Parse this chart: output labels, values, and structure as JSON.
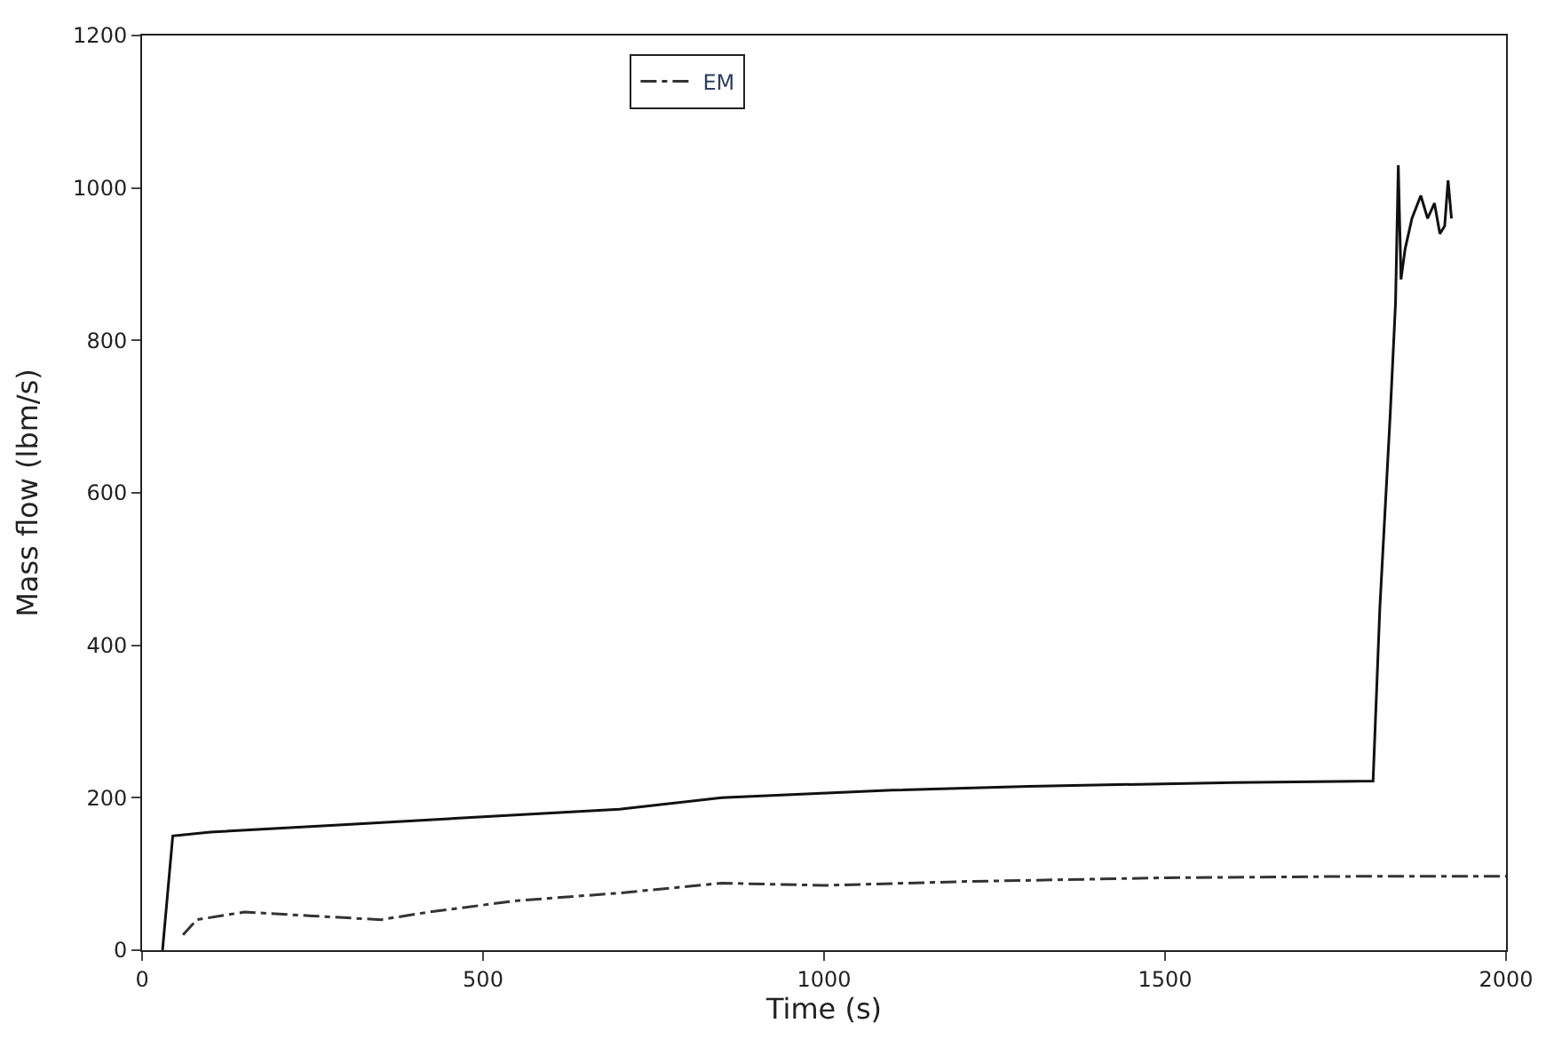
{
  "chart_data": {
    "type": "line",
    "xlabel": "Time (s)",
    "ylabel": "Mass flow (lbm/s)",
    "xlim": [
      0,
      2000
    ],
    "xticks": [
      0,
      500,
      1000,
      1500,
      2000
    ],
    "ylim": [
      0,
      1200
    ],
    "yticks": [
      0,
      200,
      400,
      600,
      800,
      1000,
      1200
    ],
    "legend": "top",
    "marker": "none",
    "series": [
      {
        "color": "#111111",
        "line_style": "solid",
        "x": [
          30,
          40,
          45,
          100,
          300,
          500,
          700,
          850,
          1100,
          1300,
          1600,
          1805,
          1815,
          1830,
          1838,
          1842,
          1846,
          1852,
          1862,
          1875,
          1885,
          1895,
          1903,
          1910,
          1915,
          1920
        ],
        "values": [
          0,
          100,
          150,
          155,
          165,
          175,
          185,
          200,
          210,
          215,
          220,
          222,
          450,
          700,
          850,
          1030,
          880,
          920,
          960,
          990,
          960,
          980,
          940,
          950,
          1010,
          960
        ]
      },
      {
        "name": "EM",
        "color": "#333333",
        "line_style": "dashed",
        "x": [
          60,
          80,
          150,
          250,
          350,
          420,
          550,
          700,
          850,
          1000,
          1200,
          1500,
          1800,
          2000
        ],
        "values": [
          20,
          40,
          50,
          45,
          40,
          50,
          65,
          75,
          88,
          85,
          90,
          95,
          97,
          97
        ]
      }
    ]
  }
}
